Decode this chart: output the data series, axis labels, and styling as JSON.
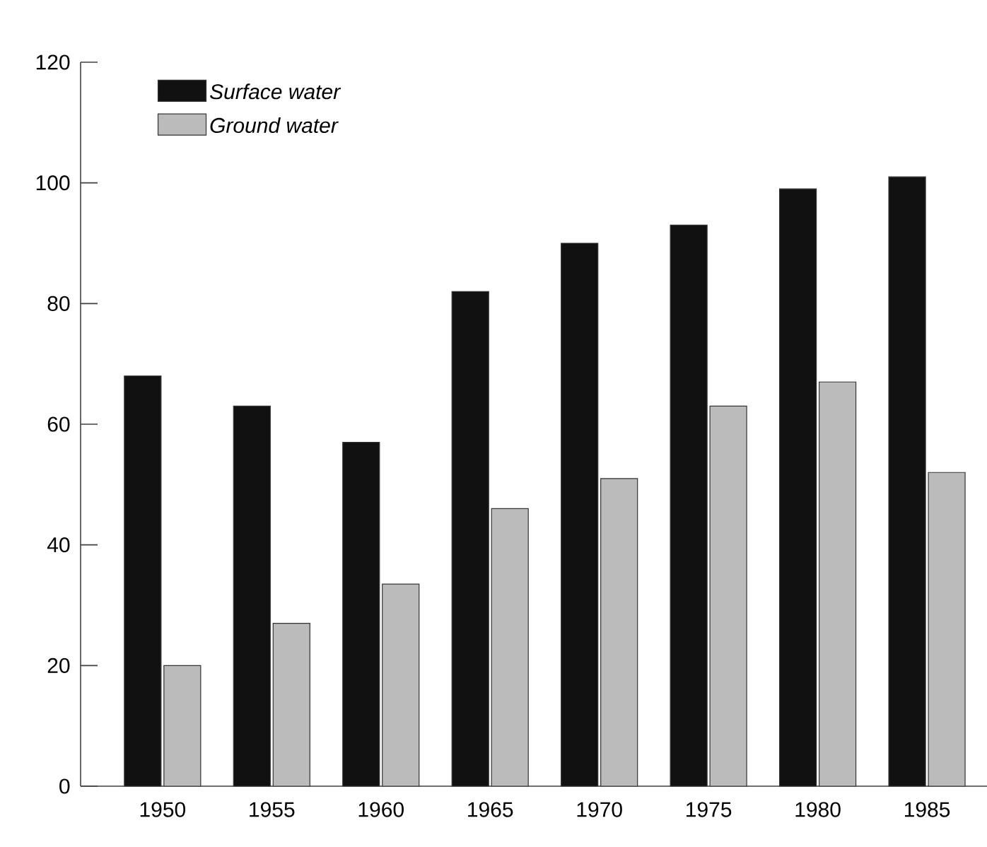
{
  "chart_data": {
    "type": "bar",
    "categories": [
      "1950",
      "1955",
      "1960",
      "1965",
      "1970",
      "1975",
      "1980",
      "1985"
    ],
    "series": [
      {
        "name": "Surface water",
        "color": "#111111",
        "values": [
          68,
          63,
          57,
          82,
          90,
          93,
          99,
          101
        ]
      },
      {
        "name": "Ground water",
        "color": "#bbbbbb",
        "values": [
          20,
          27,
          33.5,
          46,
          51,
          63,
          67,
          52
        ]
      }
    ],
    "ylim": [
      0,
      120
    ],
    "yticks": [
      0,
      20,
      40,
      60,
      80,
      100,
      120
    ],
    "grid": false,
    "legend": "top left"
  }
}
